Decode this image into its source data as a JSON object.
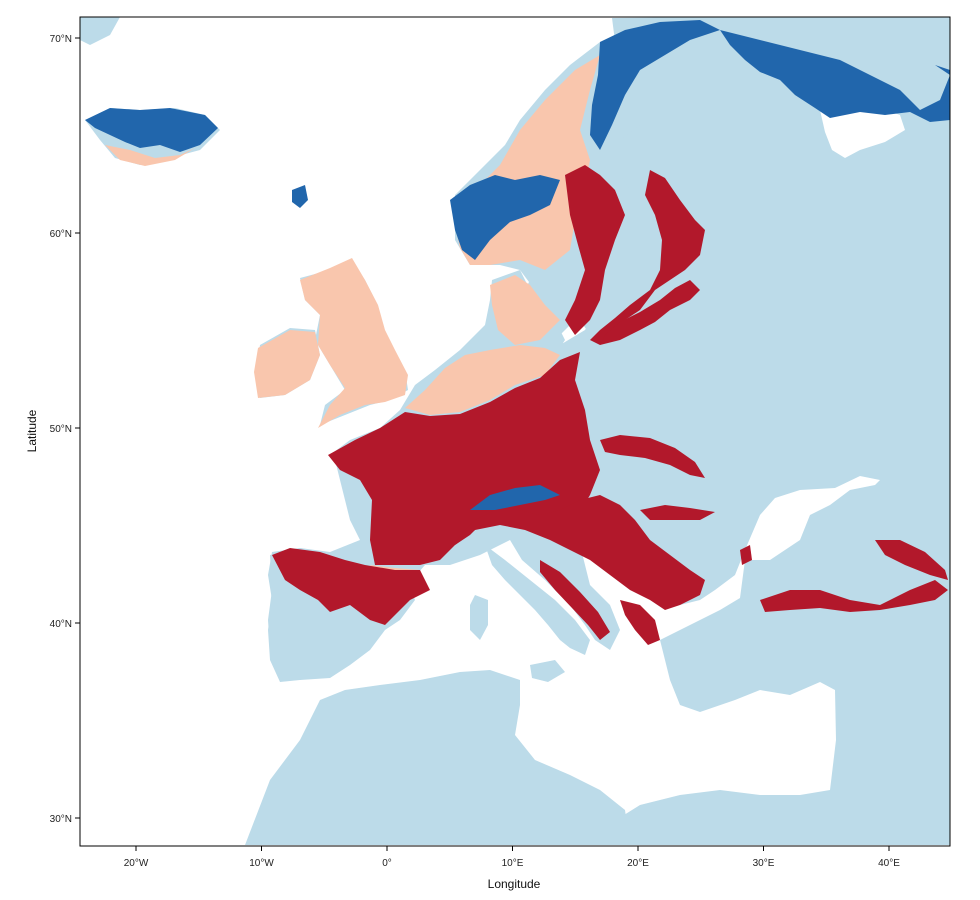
{
  "map": {
    "x_axis": {
      "title": "Longitude",
      "ticks": [
        {
          "value": -20,
          "label": "20°W"
        },
        {
          "value": -10,
          "label": "10°W"
        },
        {
          "value": 0,
          "label": "0°"
        },
        {
          "value": 10,
          "label": "10°E"
        },
        {
          "value": 20,
          "label": "20°E"
        },
        {
          "value": 30,
          "label": "30°E"
        },
        {
          "value": 40,
          "label": "40°E"
        }
      ]
    },
    "y_axis": {
      "title": "Latitude",
      "ticks": [
        {
          "value": 30,
          "label": "30°N"
        },
        {
          "value": 40,
          "label": "40°N"
        },
        {
          "value": 50,
          "label": "50°N"
        },
        {
          "value": 60,
          "label": "60°N"
        },
        {
          "value": 70,
          "label": "70°N"
        }
      ]
    },
    "colors": {
      "sea": "#ffffff",
      "land_background": "#bcdbe9",
      "class_dark_red": "#b2182b",
      "class_light_salmon": "#f9c6ad",
      "class_dark_blue": "#2166ac"
    }
  }
}
